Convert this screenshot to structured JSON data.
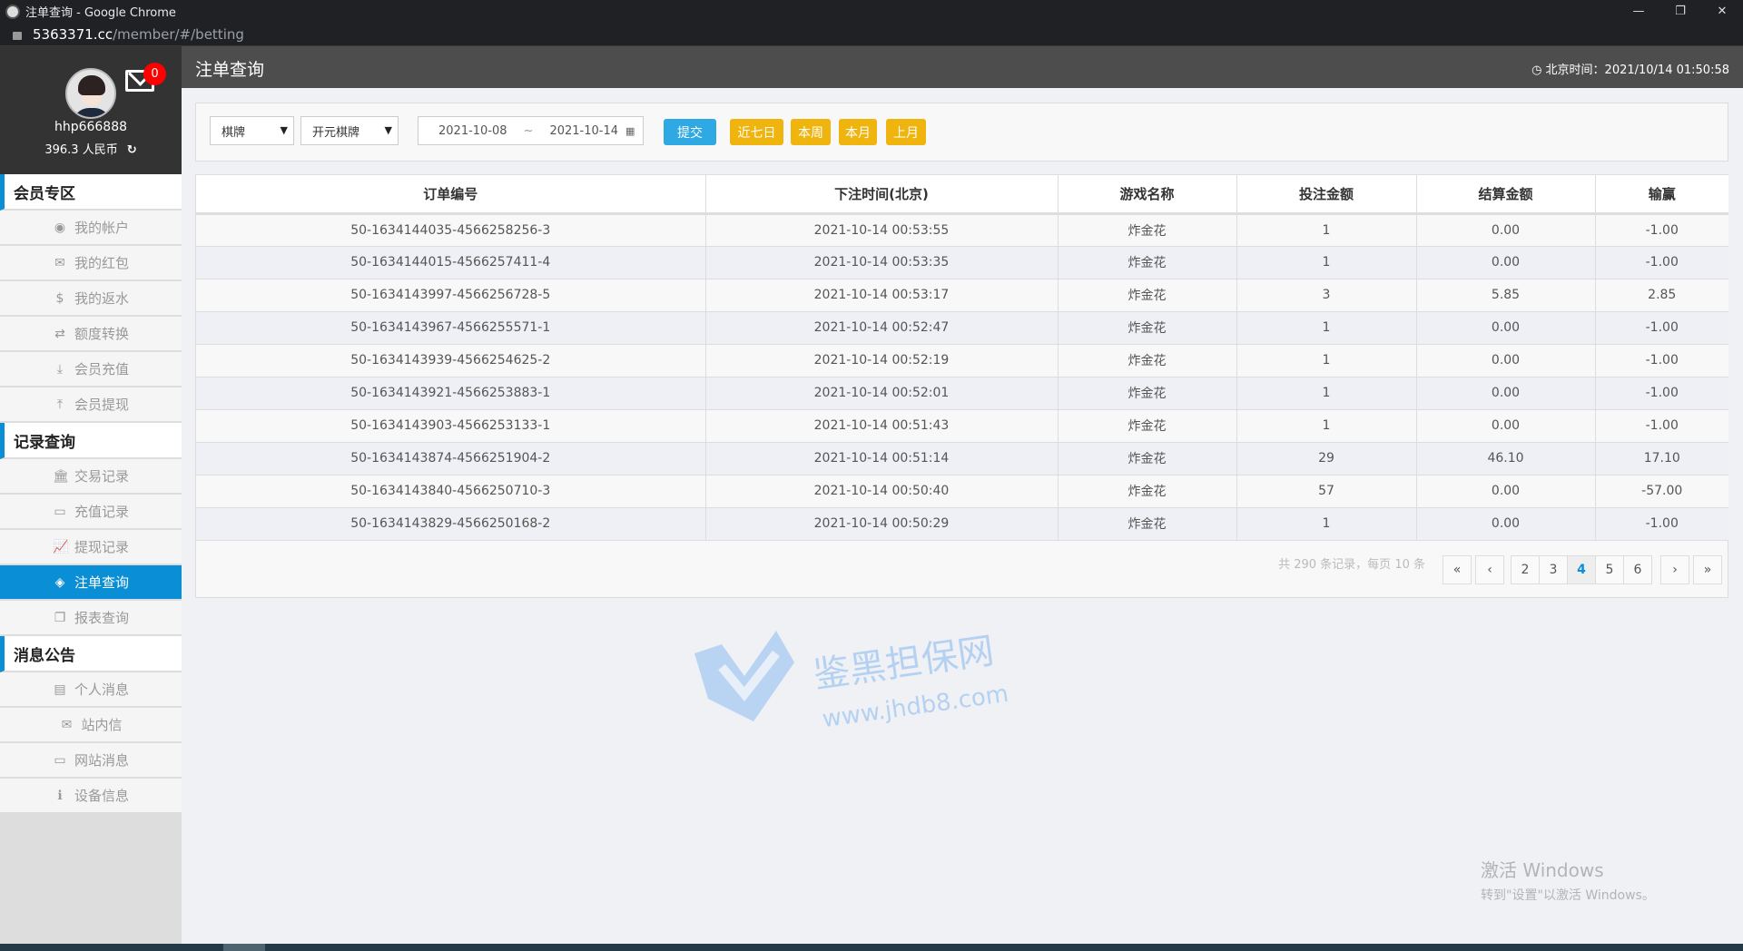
{
  "browser": {
    "window_title": "注单查询 - Google Chrome",
    "url_host": "5363371.cc",
    "url_path": "/member/#/betting",
    "controls": {
      "minimize": "—",
      "restore": "❐",
      "close": "✕"
    }
  },
  "profile": {
    "username": "hhp666888",
    "balance": "396.3 人民币",
    "unread_messages": "0",
    "refresh_icon": "↻"
  },
  "sidebar": {
    "sections": [
      {
        "title": "会员专区",
        "items": [
          {
            "label": "我的帐户",
            "icon": "user-circle-icon",
            "glyph": "◉"
          },
          {
            "label": "我的红包",
            "icon": "envelope-square-icon",
            "glyph": "✉"
          },
          {
            "label": "我的返水",
            "icon": "dollar-icon",
            "glyph": "$"
          },
          {
            "label": "额度转换",
            "icon": "exchange-icon",
            "glyph": "⇄"
          },
          {
            "label": "会员充值",
            "icon": "download-icon",
            "glyph": "⤓"
          },
          {
            "label": "会员提现",
            "icon": "upload-icon",
            "glyph": "⤒"
          }
        ]
      },
      {
        "title": "记录查询",
        "items": [
          {
            "label": "交易记录",
            "icon": "bank-icon",
            "glyph": "🏛"
          },
          {
            "label": "充值记录",
            "icon": "credit-card-icon",
            "glyph": "▭"
          },
          {
            "label": "提现记录",
            "icon": "line-chart-icon",
            "glyph": "📈"
          },
          {
            "label": "注单查询",
            "icon": "ticket-icon",
            "glyph": "◈",
            "active": true
          },
          {
            "label": "报表查询",
            "icon": "copy-icon",
            "glyph": "❐"
          }
        ]
      },
      {
        "title": "消息公告",
        "items": [
          {
            "label": "个人消息",
            "icon": "id-card-icon",
            "glyph": "▤"
          },
          {
            "label": "站内信",
            "icon": "envelope-icon",
            "glyph": "✉"
          },
          {
            "label": "网站消息",
            "icon": "laptop-icon",
            "glyph": "▭"
          },
          {
            "label": "设备信息",
            "icon": "info-icon",
            "glyph": "ℹ"
          }
        ]
      }
    ]
  },
  "header": {
    "title": "注单查询",
    "clock_label": "北京时间：2021/10/14 01:50:58"
  },
  "filter": {
    "category": "棋牌",
    "platform": "开元棋牌",
    "date_from": "2021-10-08",
    "date_sep": "~",
    "date_to": "2021-10-14",
    "submit": "提交",
    "quick": [
      "近七日",
      "本周",
      "本月",
      "上月"
    ]
  },
  "table": {
    "columns": [
      "订单编号",
      "下注时间(北京)",
      "游戏名称",
      "投注金额",
      "结算金额",
      "输赢"
    ],
    "rows": [
      [
        "50-1634144035-4566258256-3",
        "2021-10-14 00:53:55",
        "炸金花",
        "1",
        "0.00",
        "-1.00"
      ],
      [
        "50-1634144015-4566257411-4",
        "2021-10-14 00:53:35",
        "炸金花",
        "1",
        "0.00",
        "-1.00"
      ],
      [
        "50-1634143997-4566256728-5",
        "2021-10-14 00:53:17",
        "炸金花",
        "3",
        "5.85",
        "2.85"
      ],
      [
        "50-1634143967-4566255571-1",
        "2021-10-14 00:52:47",
        "炸金花",
        "1",
        "0.00",
        "-1.00"
      ],
      [
        "50-1634143939-4566254625-2",
        "2021-10-14 00:52:19",
        "炸金花",
        "1",
        "0.00",
        "-1.00"
      ],
      [
        "50-1634143921-4566253883-1",
        "2021-10-14 00:52:01",
        "炸金花",
        "1",
        "0.00",
        "-1.00"
      ],
      [
        "50-1634143903-4566253133-1",
        "2021-10-14 00:51:43",
        "炸金花",
        "1",
        "0.00",
        "-1.00"
      ],
      [
        "50-1634143874-4566251904-2",
        "2021-10-14 00:51:14",
        "炸金花",
        "29",
        "46.10",
        "17.10"
      ],
      [
        "50-1634143840-4566250710-3",
        "2021-10-14 00:50:40",
        "炸金花",
        "57",
        "0.00",
        "-57.00"
      ],
      [
        "50-1634143829-4566250168-2",
        "2021-10-14 00:50:29",
        "炸金花",
        "1",
        "0.00",
        "-1.00"
      ]
    ]
  },
  "pagination": {
    "info": "共 290 条记录，每页 10 条",
    "first": "«",
    "prev": "‹",
    "pages": [
      "2",
      "3",
      "4",
      "5",
      "6"
    ],
    "current": "4",
    "next": "›",
    "last": "»"
  },
  "watermark": {
    "line1": "鉴黑担保网",
    "line2": "www.jhdb8.com"
  },
  "windows_activation": {
    "title": "激活 Windows",
    "subtitle": "转到\"设置\"以激活 Windows。"
  },
  "colors": {
    "accent": "#0a8fd6",
    "submit": "#2fa9e4",
    "quick": "#efb40e",
    "badge": "#ff0000"
  }
}
